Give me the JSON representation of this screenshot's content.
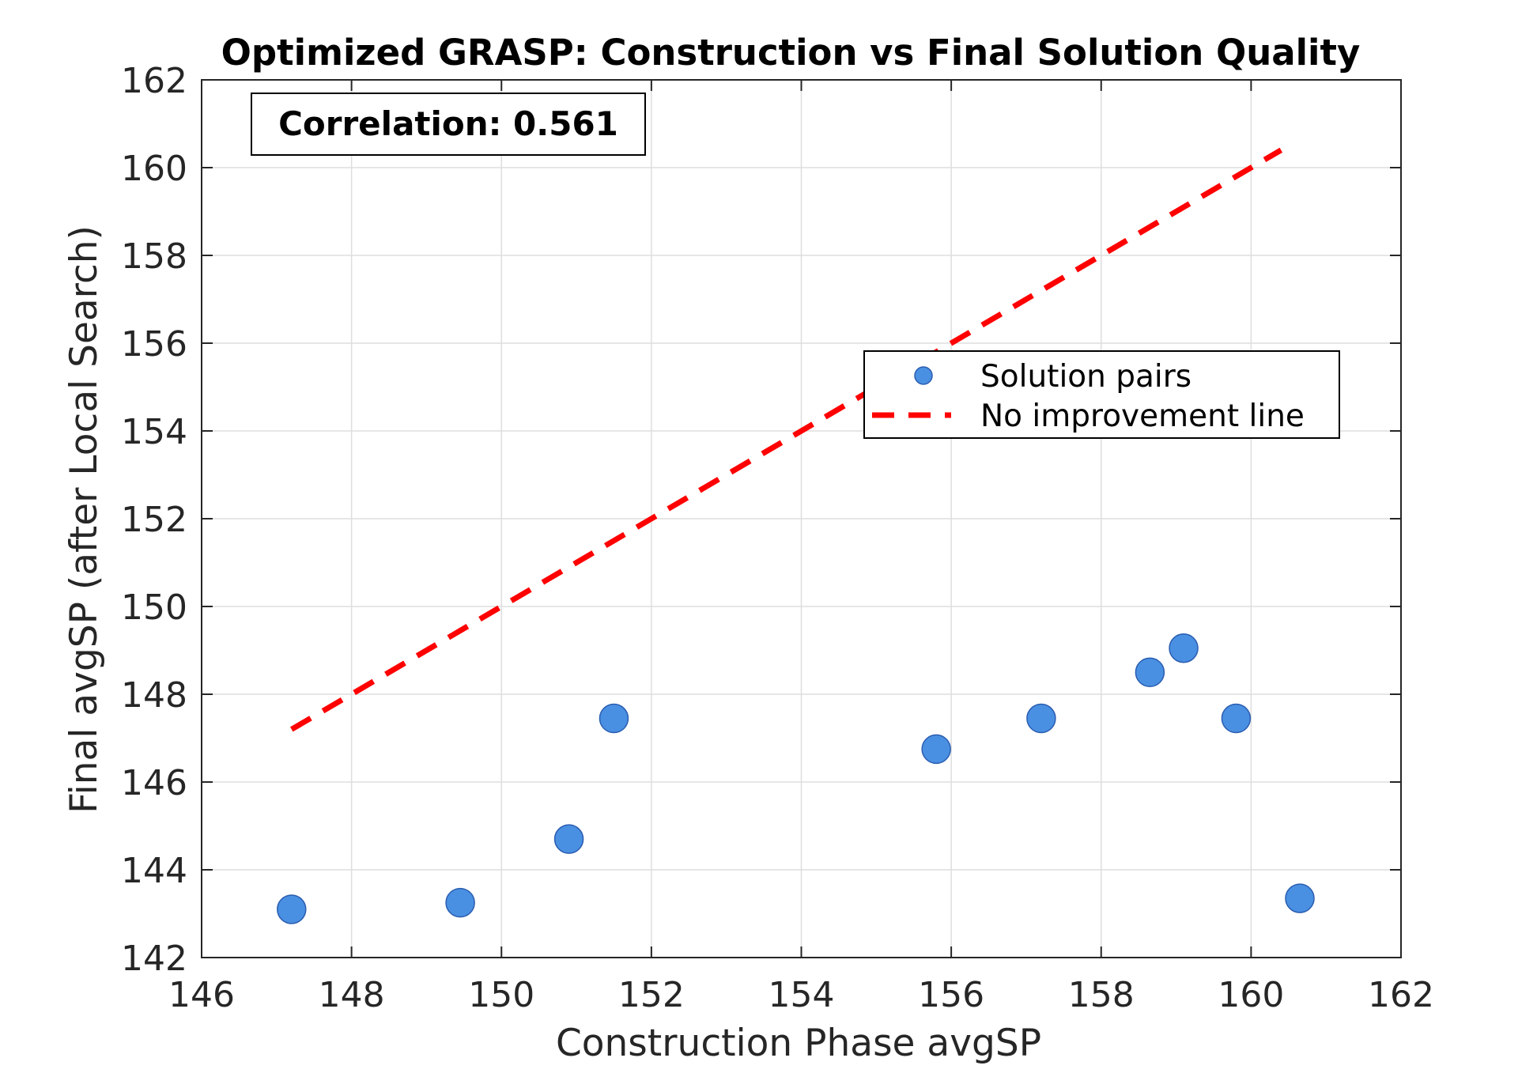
{
  "chart_data": {
    "type": "scatter",
    "title": "Optimized GRASP: Construction vs Final Solution Quality",
    "xlabel": "Construction Phase avgSP",
    "ylabel": "Final avgSP (after Local Search)",
    "xlim": [
      146,
      162
    ],
    "ylim": [
      142,
      162
    ],
    "xticks": [
      146,
      148,
      150,
      152,
      154,
      156,
      158,
      160,
      162
    ],
    "yticks": [
      142,
      144,
      146,
      148,
      150,
      152,
      154,
      156,
      158,
      160,
      162
    ],
    "grid": true,
    "legend_position": "center-right",
    "annotation": "Correlation: 0.561",
    "series": [
      {
        "name": "Solution pairs",
        "kind": "scatter",
        "color": "#4a90e2",
        "edge_color": "#2a5db0",
        "points": [
          {
            "x": 147.2,
            "y": 143.1
          },
          {
            "x": 149.45,
            "y": 143.25
          },
          {
            "x": 150.9,
            "y": 144.7
          },
          {
            "x": 151.5,
            "y": 147.45
          },
          {
            "x": 155.8,
            "y": 146.75
          },
          {
            "x": 157.2,
            "y": 147.45
          },
          {
            "x": 158.65,
            "y": 148.5
          },
          {
            "x": 159.1,
            "y": 149.05
          },
          {
            "x": 159.8,
            "y": 147.45
          },
          {
            "x": 160.65,
            "y": 143.35
          }
        ]
      },
      {
        "name": "No improvement line",
        "kind": "line",
        "style": "dashed",
        "color": "#ff0000",
        "x": [
          147.2,
          160.4
        ],
        "y": [
          147.2,
          160.4
        ]
      }
    ]
  }
}
